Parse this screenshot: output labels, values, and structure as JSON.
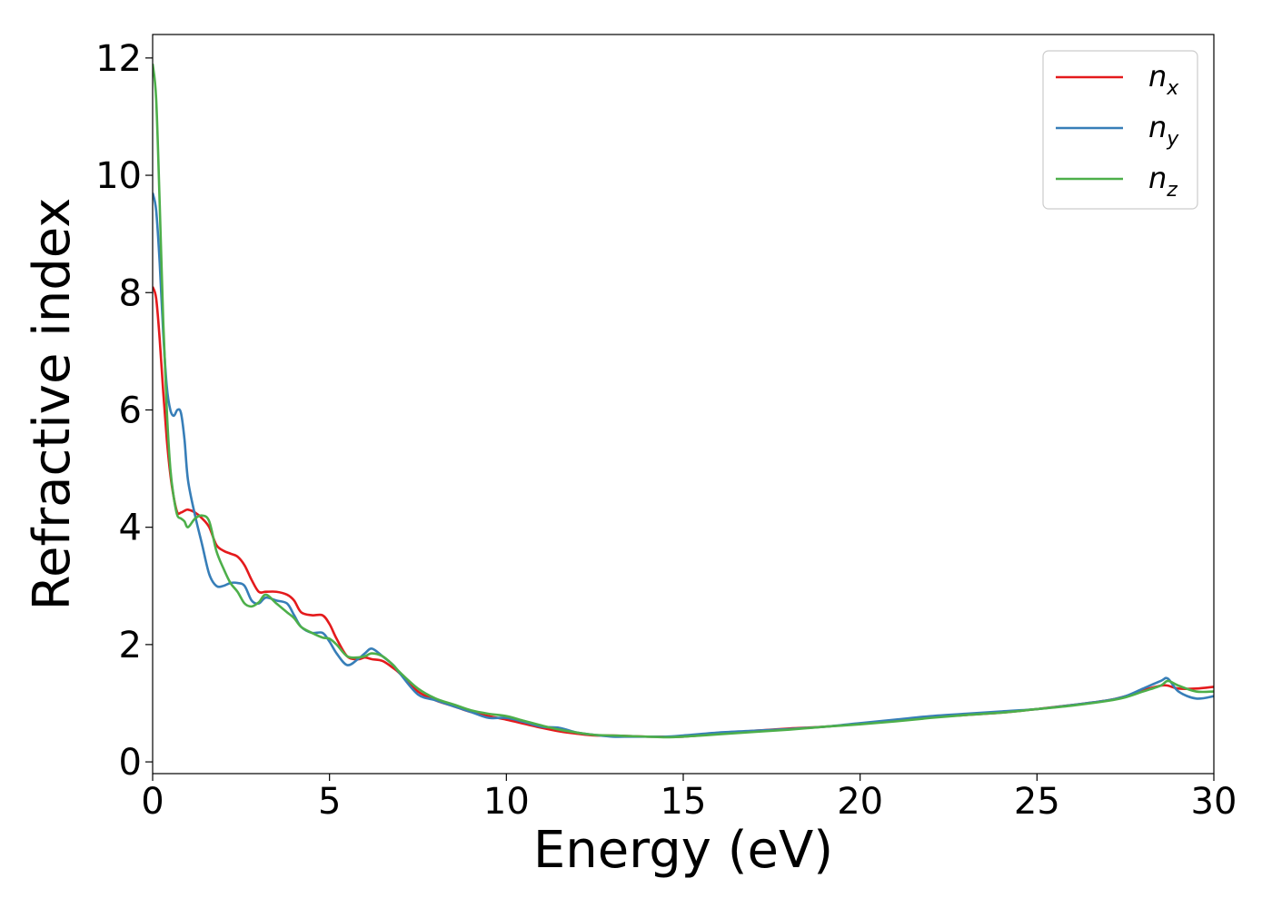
{
  "chart_data": {
    "type": "line",
    "title": "",
    "xlabel": "Energy (eV)",
    "ylabel": "Refractive index",
    "xlim": [
      0,
      30
    ],
    "ylim": [
      -0.2,
      12.4
    ],
    "xticks": [
      "0",
      "5",
      "10",
      "15",
      "20",
      "25",
      "30"
    ],
    "yticks": [
      "0",
      "2",
      "4",
      "6",
      "8",
      "10",
      "12"
    ],
    "grid": false,
    "legend_position": "top-right",
    "series": [
      {
        "name": "n_x",
        "legend_base": "n",
        "legend_sub": "x",
        "color": "#e41a1c",
        "x": [
          0,
          0.1,
          0.2,
          0.3,
          0.4,
          0.5,
          0.6,
          0.7,
          0.8,
          0.9,
          1.0,
          1.2,
          1.4,
          1.6,
          1.8,
          2.0,
          2.2,
          2.4,
          2.6,
          2.8,
          3.0,
          3.2,
          3.5,
          3.8,
          4.0,
          4.2,
          4.5,
          4.8,
          5.0,
          5.2,
          5.5,
          5.8,
          6.0,
          6.2,
          6.5,
          6.8,
          7.0,
          7.5,
          8.0,
          8.5,
          9.0,
          9.5,
          10.0,
          10.5,
          11.0,
          11.5,
          12.0,
          12.5,
          13.0,
          13.5,
          14.0,
          14.5,
          15.0,
          16.0,
          17.0,
          18.0,
          19.0,
          20.0,
          21.0,
          22.0,
          23.0,
          24.0,
          25.0,
          26.0,
          27.0,
          27.5,
          28.0,
          28.5,
          28.7,
          29.0,
          29.5,
          30.0
        ],
        "values": [
          8.1,
          7.9,
          7.2,
          6.3,
          5.5,
          4.9,
          4.5,
          4.25,
          4.25,
          4.28,
          4.3,
          4.25,
          4.15,
          4.0,
          3.7,
          3.6,
          3.55,
          3.5,
          3.35,
          3.1,
          2.9,
          2.9,
          2.9,
          2.85,
          2.75,
          2.55,
          2.5,
          2.5,
          2.35,
          2.1,
          1.8,
          1.75,
          1.78,
          1.75,
          1.72,
          1.6,
          1.5,
          1.2,
          1.05,
          0.95,
          0.85,
          0.78,
          0.72,
          0.65,
          0.58,
          0.52,
          0.48,
          0.45,
          0.45,
          0.44,
          0.43,
          0.43,
          0.43,
          0.48,
          0.53,
          0.57,
          0.6,
          0.65,
          0.7,
          0.76,
          0.8,
          0.84,
          0.9,
          0.97,
          1.05,
          1.12,
          1.22,
          1.3,
          1.3,
          1.25,
          1.25,
          1.28
        ]
      },
      {
        "name": "n_y",
        "legend_base": "n",
        "legend_sub": "y",
        "color": "#377eb8",
        "x": [
          0,
          0.1,
          0.2,
          0.3,
          0.4,
          0.5,
          0.6,
          0.7,
          0.8,
          0.9,
          1.0,
          1.2,
          1.4,
          1.6,
          1.8,
          2.0,
          2.2,
          2.4,
          2.6,
          2.8,
          3.0,
          3.2,
          3.5,
          3.8,
          4.0,
          4.2,
          4.5,
          4.8,
          5.0,
          5.2,
          5.5,
          5.8,
          6.0,
          6.2,
          6.5,
          6.8,
          7.0,
          7.5,
          8.0,
          8.5,
          9.0,
          9.5,
          10.0,
          10.5,
          11.0,
          11.5,
          12.0,
          12.5,
          13.0,
          13.5,
          14.0,
          14.5,
          15.0,
          16.0,
          17.0,
          18.0,
          19.0,
          20.0,
          21.0,
          22.0,
          23.0,
          24.0,
          25.0,
          26.0,
          27.0,
          27.5,
          28.0,
          28.5,
          28.7,
          29.0,
          29.5,
          30.0
        ],
        "values": [
          9.7,
          9.4,
          8.5,
          7.3,
          6.4,
          6.0,
          5.9,
          6.0,
          5.95,
          5.5,
          4.8,
          4.2,
          3.7,
          3.2,
          3.0,
          3.0,
          3.05,
          3.05,
          3.0,
          2.75,
          2.7,
          2.8,
          2.75,
          2.7,
          2.5,
          2.3,
          2.2,
          2.2,
          2.05,
          1.85,
          1.65,
          1.75,
          1.85,
          1.93,
          1.8,
          1.65,
          1.5,
          1.15,
          1.05,
          0.95,
          0.85,
          0.75,
          0.75,
          0.68,
          0.6,
          0.58,
          0.5,
          0.46,
          0.43,
          0.43,
          0.43,
          0.43,
          0.45,
          0.5,
          0.53,
          0.56,
          0.6,
          0.66,
          0.72,
          0.78,
          0.82,
          0.86,
          0.9,
          0.97,
          1.05,
          1.12,
          1.25,
          1.38,
          1.42,
          1.2,
          1.08,
          1.12
        ]
      },
      {
        "name": "n_z",
        "legend_base": "n",
        "legend_sub": "z",
        "color": "#4daf4a",
        "x": [
          0,
          0.1,
          0.2,
          0.3,
          0.4,
          0.5,
          0.6,
          0.7,
          0.8,
          0.9,
          1.0,
          1.2,
          1.4,
          1.6,
          1.8,
          2.0,
          2.2,
          2.4,
          2.6,
          2.8,
          3.0,
          3.2,
          3.5,
          3.8,
          4.0,
          4.2,
          4.5,
          4.8,
          5.0,
          5.2,
          5.5,
          5.8,
          6.0,
          6.2,
          6.5,
          6.8,
          7.0,
          7.5,
          8.0,
          8.5,
          9.0,
          9.5,
          10.0,
          10.5,
          11.0,
          11.5,
          12.0,
          12.5,
          13.0,
          13.5,
          14.0,
          14.5,
          15.0,
          16.0,
          17.0,
          18.0,
          19.0,
          20.0,
          21.0,
          22.0,
          23.0,
          24.0,
          25.0,
          26.0,
          27.0,
          27.5,
          28.0,
          28.5,
          28.7,
          29.0,
          29.5,
          30.0
        ],
        "values": [
          11.9,
          11.3,
          9.5,
          7.5,
          6.0,
          5.0,
          4.5,
          4.2,
          4.15,
          4.1,
          4.0,
          4.15,
          4.2,
          4.1,
          3.6,
          3.3,
          3.05,
          2.9,
          2.7,
          2.65,
          2.72,
          2.85,
          2.7,
          2.55,
          2.45,
          2.3,
          2.2,
          2.12,
          2.1,
          2.0,
          1.8,
          1.78,
          1.8,
          1.85,
          1.8,
          1.65,
          1.52,
          1.25,
          1.08,
          0.98,
          0.88,
          0.82,
          0.78,
          0.7,
          0.62,
          0.55,
          0.5,
          0.46,
          0.45,
          0.44,
          0.43,
          0.42,
          0.43,
          0.47,
          0.51,
          0.55,
          0.6,
          0.64,
          0.69,
          0.75,
          0.8,
          0.84,
          0.9,
          0.96,
          1.04,
          1.1,
          1.2,
          1.3,
          1.38,
          1.3,
          1.2,
          1.2
        ]
      }
    ]
  }
}
